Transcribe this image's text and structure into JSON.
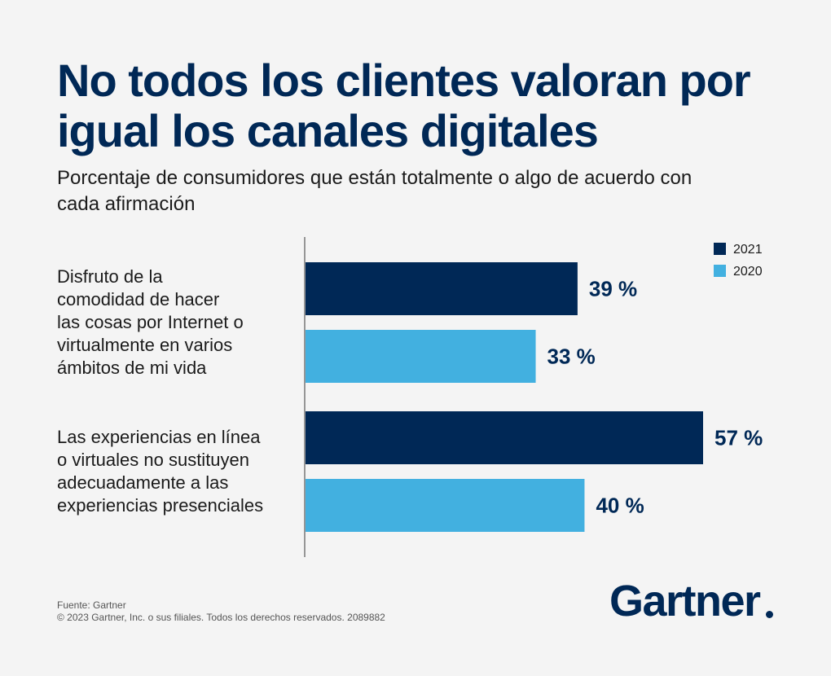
{
  "title": "No todos los clientes valoran por igual los canales digitales",
  "subtitle": "Porcentaje de consumidores que están totalmente o algo de acuerdo con cada afirmación",
  "colors": {
    "s2021": "#002856",
    "s2020": "#42b0e0",
    "text_dark": "#002856"
  },
  "chart_data": {
    "type": "bar",
    "orientation": "horizontal",
    "categories": [
      [
        "Disfruto de la",
        "comodidad de hacer",
        "las cosas por Internet o",
        "virtualmente en varios",
        "ámbitos de mi vida"
      ],
      [
        "Las experiencias en línea",
        "o virtuales no sustituyen",
        "adecuadamente a las",
        "experiencias presenciales"
      ]
    ],
    "series": [
      {
        "name": "2021",
        "values": [
          39,
          57
        ],
        "labels": [
          "39 %",
          "57 %"
        ]
      },
      {
        "name": "2020",
        "values": [
          33,
          40
        ],
        "labels": [
          "33 %",
          "40 %"
        ]
      }
    ],
    "xlim": [
      0,
      57
    ],
    "legend": {
      "placement": "top-right"
    },
    "grid": false
  },
  "footer": {
    "source": "Fuente: Gartner",
    "copyright": "© 2023 Gartner, Inc. o sus filiales. Todos los derechos reservados. 2089882"
  },
  "logo_text": "Gartner"
}
